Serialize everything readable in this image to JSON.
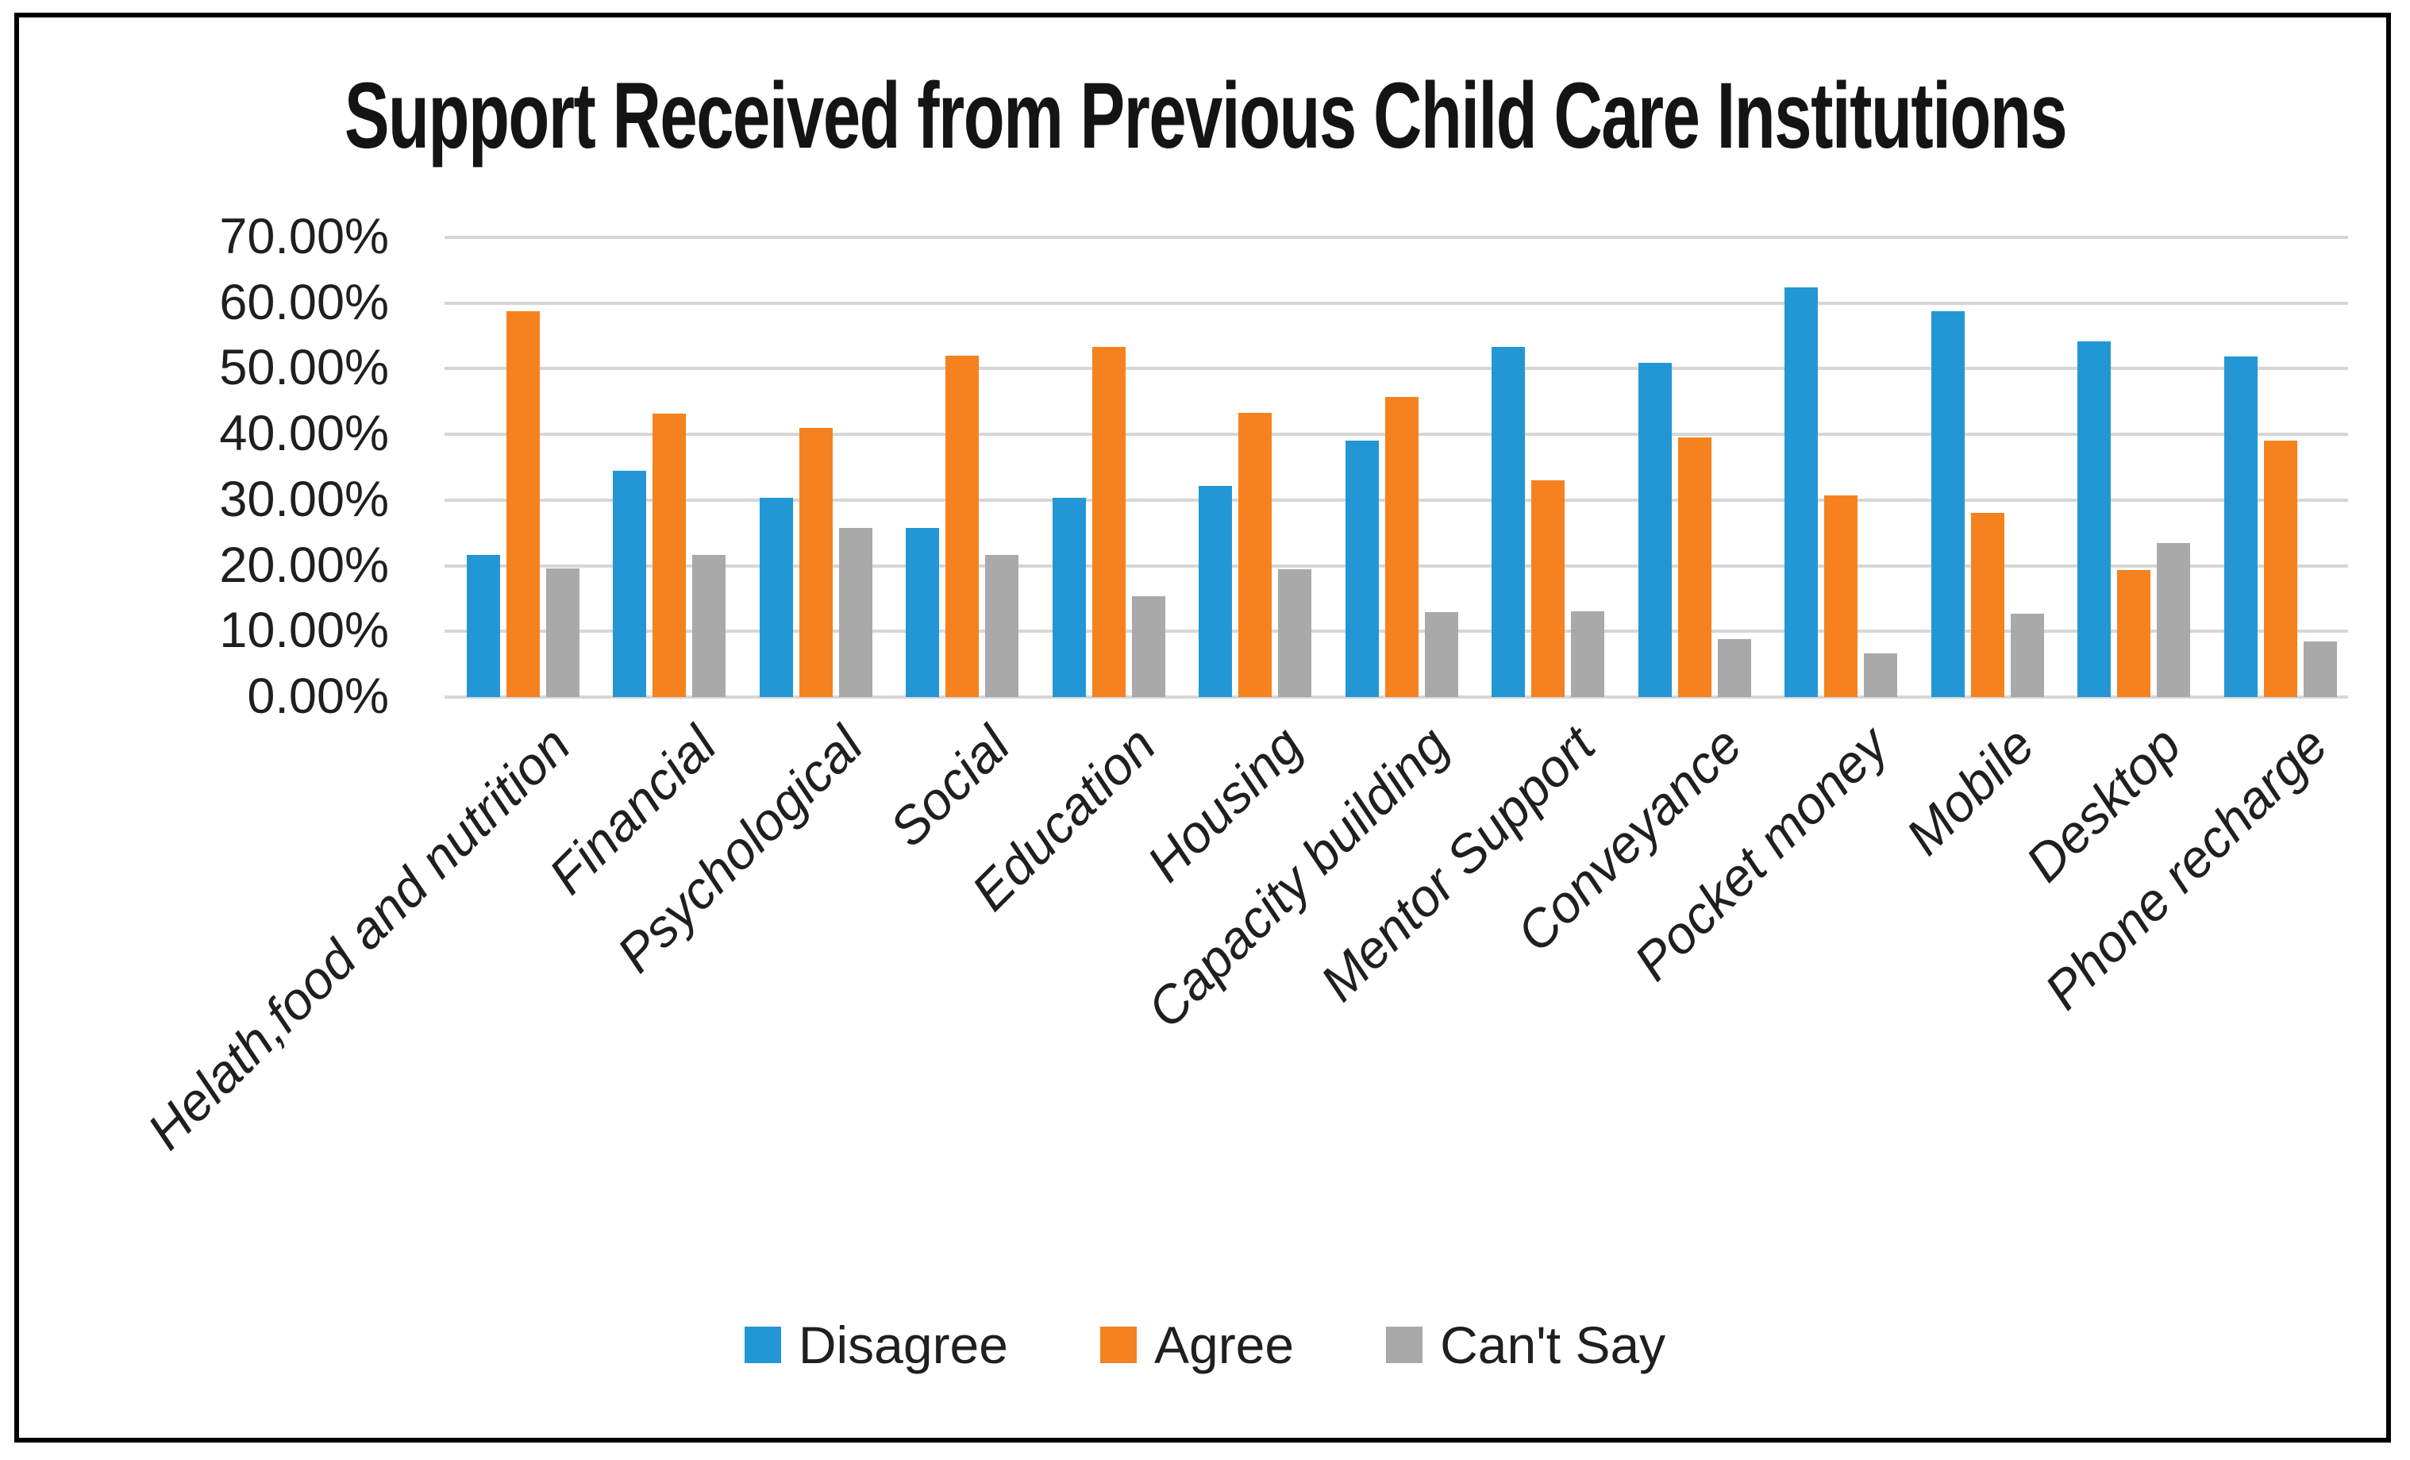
{
  "title": "Support Received from Previous Child Care Institutions",
  "frame": {
    "border_color": "#000000",
    "background": "#ffffff"
  },
  "legend": {
    "position": "bottom",
    "entries": [
      "Disagree",
      "Agree",
      "Can't Say"
    ]
  },
  "colors": {
    "disagree": "#2397d5",
    "agree": "#f6821f",
    "cant_say": "#a9a9a9",
    "gridline": "#d6d6d6",
    "text": "#1f1f1f"
  },
  "chart_data": {
    "type": "bar",
    "title": "Support Received from Previous Child Care Institutions",
    "categories": [
      "Helath,food and nutrition",
      "Financial",
      "Psychological",
      "Social",
      "Education",
      "Housing",
      "Capacity building",
      "Mentor Support",
      "Conveyance",
      "Pocket money",
      "Mobile",
      "Desktop",
      "Phone recharge"
    ],
    "series": [
      {
        "name": "Disagree",
        "color": "#2397d5",
        "values": [
          21.7,
          34.5,
          30.4,
          25.8,
          30.4,
          32.2,
          39.1,
          53.3,
          50.9,
          62.4,
          58.8,
          54.2,
          51.9
        ]
      },
      {
        "name": "Agree",
        "color": "#f6821f",
        "values": [
          58.7,
          43.2,
          41.0,
          52.0,
          53.3,
          43.3,
          45.7,
          33.0,
          39.5,
          30.7,
          28.1,
          19.4,
          39.0
        ]
      },
      {
        "name": "Can't Say",
        "color": "#a9a9a9",
        "values": [
          19.6,
          21.7,
          25.8,
          21.7,
          15.3,
          19.5,
          12.9,
          13.0,
          8.8,
          6.6,
          12.7,
          23.5,
          8.5
        ]
      }
    ],
    "xlabel": "",
    "ylabel": "",
    "ylim": [
      0,
      70
    ],
    "ytick_step": 10,
    "ytick_labels": [
      "0.00%",
      "10.00%",
      "20.00%",
      "30.00%",
      "40.00%",
      "50.00%",
      "60.00%",
      "70.00%"
    ],
    "grid": true,
    "legend_position": "bottom",
    "bar_orientation": "vertical"
  }
}
